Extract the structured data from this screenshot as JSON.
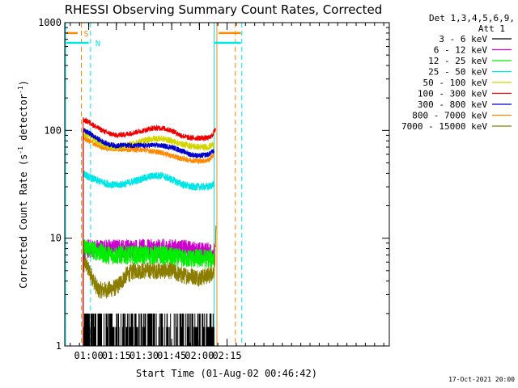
{
  "chart_data": {
    "type": "line",
    "title": "RHESSI Observing Summary Count Rates, Corrected",
    "xlabel": "Start Time (01-Aug-02 00:46:42)",
    "ylabel_main": "Corrected Count Rate (s",
    "ylabel_sup1": "-1",
    "ylabel_mid": " detector",
    "ylabel_sup2": "-1",
    "ylabel_end": ")",
    "y_scale": "log",
    "ylim": [
      1,
      1000
    ],
    "xlim_min": [
      47,
      223
    ],
    "x_ticks": [
      {
        "min": 60,
        "label": "01:00"
      },
      {
        "min": 75,
        "label": "01:15"
      },
      {
        "min": 90,
        "label": "01:30"
      },
      {
        "min": 105,
        "label": "01:45"
      },
      {
        "min": 120,
        "label": "02:00"
      },
      {
        "min": 135,
        "label": "02:15"
      }
    ],
    "y_ticks": [
      {
        "v": 1,
        "label": "1"
      },
      {
        "v": 10,
        "label": "10"
      },
      {
        "v": 100,
        "label": "100"
      },
      {
        "v": 1000,
        "label": "1000"
      }
    ],
    "legend_header": [
      "Det 1,3,4,5,6,9,",
      "Att 1"
    ],
    "series": [
      {
        "name": "3 - 6 keV",
        "color": "#000000"
      },
      {
        "name": "6 - 12 keV",
        "color": "#cc00cc"
      },
      {
        "name": "12 - 25 keV",
        "color": "#00ee00"
      },
      {
        "name": "25 - 50 keV",
        "color": "#00e5e5"
      },
      {
        "name": "50 - 100 keV",
        "color": "#d4d400"
      },
      {
        "name": "100 - 300 keV",
        "color": "#ee0000"
      },
      {
        "name": "300 - 800 keV",
        "color": "#0000cc"
      },
      {
        "name": "800 - 7000 keV",
        "color": "#ff8800"
      },
      {
        "name": "7000 - 15000 keV",
        "color": "#8b7d00"
      }
    ],
    "profiles": {
      "100 - 300 keV": [
        [
          57,
          125
        ],
        [
          60,
          120
        ],
        [
          65,
          105
        ],
        [
          70,
          95
        ],
        [
          75,
          90
        ],
        [
          80,
          92
        ],
        [
          90,
          100
        ],
        [
          95,
          105
        ],
        [
          100,
          105
        ],
        [
          105,
          100
        ],
        [
          110,
          90
        ],
        [
          115,
          85
        ],
        [
          120,
          85
        ],
        [
          125,
          85
        ],
        [
          127,
          90
        ],
        [
          129,
          105
        ]
      ],
      "300 - 800 keV": [
        [
          57,
          100
        ],
        [
          60,
          95
        ],
        [
          65,
          83
        ],
        [
          70,
          75
        ],
        [
          75,
          72
        ],
        [
          80,
          73
        ],
        [
          90,
          72
        ],
        [
          95,
          73
        ],
        [
          100,
          72
        ],
        [
          105,
          70
        ],
        [
          110,
          65
        ],
        [
          115,
          60
        ],
        [
          120,
          58
        ],
        [
          125,
          60
        ],
        [
          128,
          65
        ]
      ],
      "50 - 100 keV": [
        [
          57,
          92
        ],
        [
          60,
          90
        ],
        [
          65,
          78
        ],
        [
          70,
          72
        ],
        [
          75,
          70
        ],
        [
          80,
          72
        ],
        [
          90,
          80
        ],
        [
          95,
          84
        ],
        [
          100,
          84
        ],
        [
          105,
          80
        ],
        [
          110,
          75
        ],
        [
          115,
          72
        ],
        [
          120,
          70
        ],
        [
          125,
          70
        ],
        [
          128,
          75
        ]
      ],
      "800 - 7000 keV": [
        [
          57,
          85
        ],
        [
          60,
          80
        ],
        [
          65,
          72
        ],
        [
          70,
          68
        ],
        [
          75,
          67
        ],
        [
          80,
          67
        ],
        [
          90,
          66
        ],
        [
          95,
          64
        ],
        [
          100,
          62
        ],
        [
          105,
          58
        ],
        [
          110,
          55
        ],
        [
          115,
          53
        ],
        [
          120,
          52
        ],
        [
          125,
          53
        ],
        [
          128,
          60
        ]
      ],
      "25 - 50 keV": [
        [
          57,
          40
        ],
        [
          60,
          37
        ],
        [
          65,
          34
        ],
        [
          70,
          32
        ],
        [
          75,
          31
        ],
        [
          80,
          32
        ],
        [
          85,
          34
        ],
        [
          90,
          36
        ],
        [
          95,
          38
        ],
        [
          100,
          38
        ],
        [
          105,
          35
        ],
        [
          110,
          32
        ],
        [
          115,
          30
        ],
        [
          120,
          30
        ],
        [
          125,
          30
        ],
        [
          128,
          32
        ]
      ],
      "12 - 25 keV": [
        [
          57,
          8
        ],
        [
          60,
          8
        ],
        [
          70,
          7
        ],
        [
          80,
          7
        ],
        [
          90,
          7
        ],
        [
          100,
          7
        ],
        [
          110,
          6.5
        ],
        [
          120,
          6.5
        ],
        [
          128,
          6.5
        ]
      ],
      "6 - 12 keV": [
        [
          57,
          7.5
        ],
        [
          60,
          8
        ],
        [
          70,
          8
        ],
        [
          80,
          8
        ],
        [
          90,
          8
        ],
        [
          100,
          8
        ],
        [
          110,
          8
        ],
        [
          120,
          7.5
        ],
        [
          128,
          7.5
        ]
      ],
      "7000 - 15000 keV": [
        [
          57,
          5
        ],
        [
          58,
          6
        ],
        [
          60,
          5
        ],
        [
          62,
          4.3
        ],
        [
          65,
          3.3
        ],
        [
          70,
          3.3
        ],
        [
          75,
          3.5
        ],
        [
          78,
          4
        ],
        [
          80,
          4.5
        ],
        [
          85,
          5
        ],
        [
          90,
          5
        ],
        [
          95,
          5
        ],
        [
          100,
          5
        ],
        [
          105,
          5
        ],
        [
          110,
          4.5
        ],
        [
          115,
          4.5
        ],
        [
          120,
          4.3
        ],
        [
          125,
          4.5
        ],
        [
          128,
          5
        ],
        [
          129,
          11
        ]
      ],
      "3 - 6 keV": [
        [
          57,
          1.3
        ],
        [
          128,
          1.3
        ]
      ]
    },
    "attenuator": {
      "S_label": "S",
      "N_label": "N",
      "S_color": "#ff8800",
      "N_color": "#00e5e5",
      "S_lines_min": [
        56,
        129.5,
        139.5
      ],
      "N_lines_min": [
        61,
        128
      ],
      "S_bar_level": 800,
      "N_bar_level": 650
    }
  },
  "footer_date": "17-Oct-2021 20:00"
}
